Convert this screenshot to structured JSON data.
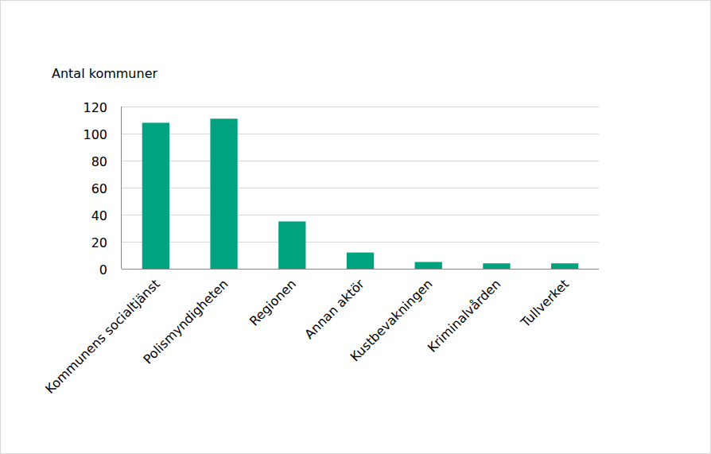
{
  "chart_data": {
    "type": "bar",
    "ylabel": "Antal kommuner",
    "categories": [
      "Kommunens socialtjänst",
      "Polismyndigheten",
      "Regionen",
      "Annan aktör",
      "Kustbevakningen",
      "Kriminalvården",
      "Tullverket"
    ],
    "values": [
      108,
      111,
      35,
      12,
      5,
      4,
      4
    ],
    "color": "#00a27f",
    "ylim": [
      0,
      120
    ],
    "yticks": [
      0,
      20,
      40,
      60,
      80,
      100,
      120
    ],
    "grid": true
  }
}
